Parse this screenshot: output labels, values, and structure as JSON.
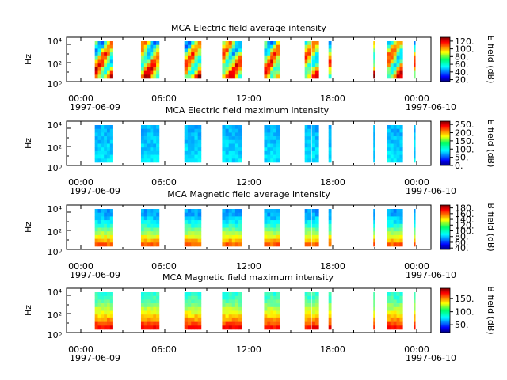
{
  "chart_data": [
    {
      "type": "heatmap",
      "title": "MCA  Electric field average intensity",
      "ylabel": "Hz",
      "y_ticks": [
        "10⁰",
        "10²",
        "10⁴"
      ],
      "x_ticks": [
        "00:00",
        "06:00",
        "12:00",
        "18:00",
        "00:00"
      ],
      "x_dates": [
        "1997-06-09",
        "1997-06-10"
      ],
      "colorbar": {
        "label": "E field (dB)",
        "ticks": [
          "20.",
          "40.",
          "60.",
          "80.",
          "100.",
          "120."
        ],
        "range": [
          15,
          130
        ]
      },
      "intensity": "high"
    },
    {
      "type": "heatmap",
      "title": "MCA  Electric field maximum intensity",
      "ylabel": "Hz",
      "y_ticks": [
        "10⁰",
        "10²",
        "10⁴"
      ],
      "x_ticks": [
        "00:00",
        "06:00",
        "12:00",
        "18:00",
        "00:00"
      ],
      "x_dates": [
        "1997-06-09",
        "1997-06-10"
      ],
      "colorbar": {
        "label": "E field (dB)",
        "ticks": [
          "0.",
          "50.",
          "100.",
          "150.",
          "200.",
          "250."
        ],
        "range": [
          0,
          270
        ]
      },
      "intensity": "low"
    },
    {
      "type": "heatmap",
      "title": "MCA  Magnetic field average intensity",
      "ylabel": "Hz",
      "y_ticks": [
        "10⁰",
        "10²",
        "10⁴"
      ],
      "x_ticks": [
        "00:00",
        "06:00",
        "12:00",
        "18:00",
        "00:00"
      ],
      "x_dates": [
        "1997-06-09",
        "1997-06-10"
      ],
      "colorbar": {
        "label": "B field (dB)",
        "ticks": [
          "40.",
          "60.",
          "80.",
          "100.",
          "120.",
          "140.",
          "160.",
          "180."
        ],
        "range": [
          35,
          190
        ]
      },
      "intensity": "gradient"
    },
    {
      "type": "heatmap",
      "title": "MCA  Magnetic field maximum intensity",
      "ylabel": "Hz",
      "y_ticks": [
        "10⁰",
        "10²",
        "10⁴"
      ],
      "x_ticks": [
        "00:00",
        "06:00",
        "12:00",
        "18:00",
        "00:00"
      ],
      "x_dates": [
        "1997-06-09",
        "1997-06-10"
      ],
      "colorbar": {
        "label": "B field (dB)",
        "ticks": [
          "50.",
          "100.",
          "150."
        ],
        "range": [
          20,
          190
        ]
      },
      "intensity": "gradient-strong"
    }
  ],
  "time_range_hours": [
    0,
    24
  ],
  "data_intervals_hours": [
    [
      1.0,
      2.3
    ],
    [
      4.3,
      5.6
    ],
    [
      7.4,
      8.6
    ],
    [
      10.1,
      11.5
    ],
    [
      13.1,
      14.2
    ],
    [
      16.0,
      16.4
    ],
    [
      16.5,
      17.0
    ],
    [
      17.7,
      17.9
    ],
    [
      20.9,
      21.0
    ],
    [
      21.9,
      23.0
    ],
    [
      23.8,
      23.9
    ]
  ]
}
